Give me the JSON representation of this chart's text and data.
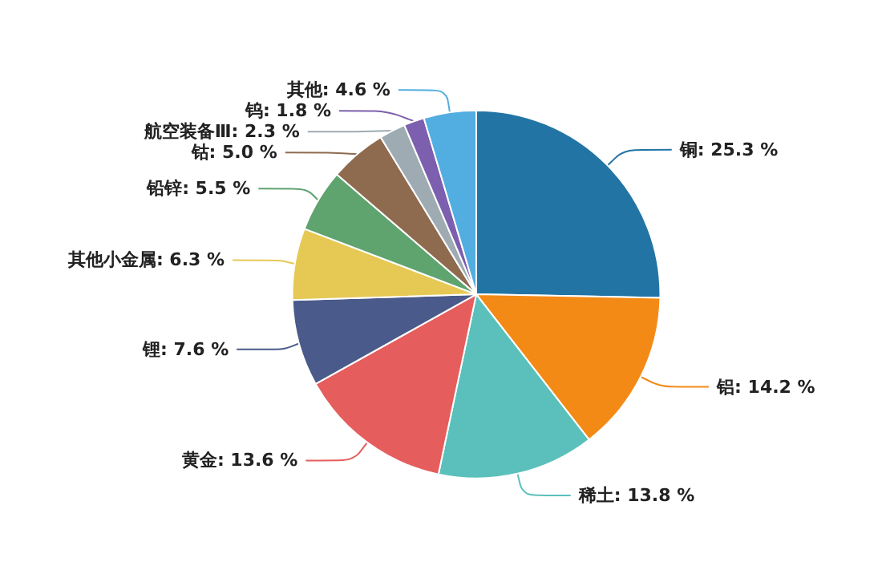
{
  "chart_data": {
    "type": "pie",
    "categories": [
      "铜",
      "铝",
      "稀土",
      "黄金",
      "锂",
      "其他小金属",
      "铅锌",
      "钴",
      "航空装备Ⅲ",
      "钨",
      "其他"
    ],
    "values": [
      25.3,
      14.2,
      13.8,
      13.6,
      7.6,
      6.3,
      5.5,
      5.0,
      2.3,
      1.8,
      4.6
    ],
    "value_labels": [
      "25.3 %",
      "14.2 %",
      "13.8 %",
      "13.6 %",
      "7.6 %",
      "6.3 %",
      "5.5 %",
      "5.0 %",
      "2.3 %",
      "1.8 %",
      "4.6 %"
    ],
    "colors": [
      "#2274a5",
      "#f48a16",
      "#5bc0bb",
      "#e55d5c",
      "#4a5a8a",
      "#e6c955",
      "#5fa36f",
      "#8e6a4f",
      "#9eabb3",
      "#7c5fae",
      "#52ade0"
    ],
    "legend": false
  }
}
